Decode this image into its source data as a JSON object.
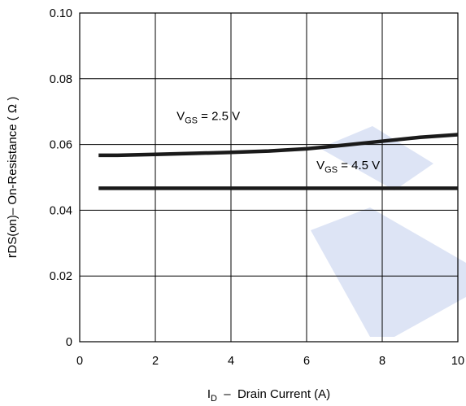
{
  "chart_data": {
    "type": "line",
    "title": "",
    "xlabel": {
      "main": "I",
      "sub": "D",
      "rest": "  –  Drain Current (A)"
    },
    "ylabel": {
      "pre": "r",
      "rest": "DS(on)–  On-Resistance ( Ω )"
    },
    "xlim": [
      0,
      10
    ],
    "ylim": [
      0,
      0.1
    ],
    "xticks": [
      0,
      2,
      4,
      6,
      8,
      10
    ],
    "xtick_labels": [
      "0",
      "2",
      "4",
      "6",
      "8",
      "10"
    ],
    "yticks": [
      0,
      0.02,
      0.04,
      0.06,
      0.08,
      0.1
    ],
    "ytick_labels": [
      "0",
      "0.02",
      "0.04",
      "0.06",
      "0.08",
      "0.10"
    ],
    "grid": true,
    "legend": "none",
    "series": [
      {
        "x": [
          0.5,
          1,
          2,
          3,
          4,
          5,
          6,
          7,
          8,
          9,
          10
        ],
        "values": [
          0.0567,
          0.0567,
          0.057,
          0.0573,
          0.0576,
          0.058,
          0.0587,
          0.0598,
          0.061,
          0.0622,
          0.063
        ]
      },
      {
        "x": [
          0.5,
          10
        ],
        "values": [
          0.0467,
          0.0467
        ]
      }
    ],
    "annotations": [
      {
        "main": "V",
        "sub": "GS",
        "rest": " = 2.5 V",
        "x": 3.4,
        "y": 0.0675
      },
      {
        "main": "V",
        "sub": "GS",
        "rest": " = 4.5 V",
        "x": 7.1,
        "y": 0.0525
      }
    ],
    "line_color": "#1a1a1a",
    "watermark_color": "#dde4f5"
  }
}
